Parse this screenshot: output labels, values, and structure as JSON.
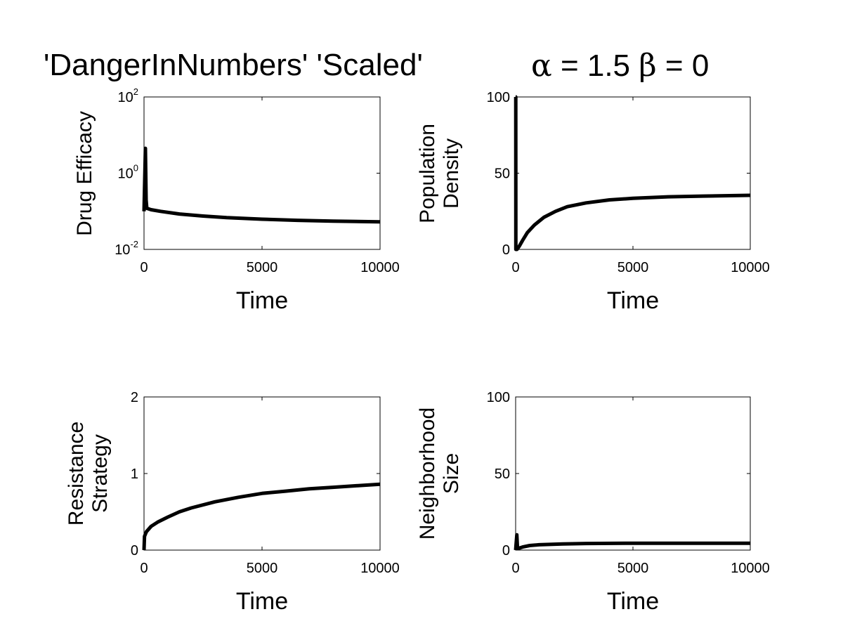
{
  "figure": {
    "title_left": "'DangerInNumbers' 'Scaled'",
    "title_alpha_symbol": "α",
    "title_alpha_rest": " = 1.5 ",
    "title_beta_symbol": "β",
    "title_beta_rest": " = 0"
  },
  "chart_data": [
    {
      "type": "line",
      "ylabel": [
        "Drug Efficacy"
      ],
      "xlabel": "Time",
      "yscale": "log",
      "xlim": [
        0,
        10000
      ],
      "ylim": [
        0.01,
        100
      ],
      "xticks": [
        0,
        5000,
        10000
      ],
      "xticklabels": [
        "0",
        "5000",
        "10000"
      ],
      "yticks": [
        0.01,
        1,
        100
      ],
      "yticklabels": [
        {
          "base": "10",
          "exp": "-2"
        },
        {
          "base": "10",
          "exp": "0"
        },
        {
          "base": "10",
          "exp": "2"
        }
      ],
      "series": [
        {
          "x": [
            0,
            60,
            90,
            120,
            300,
            700,
            1500,
            2500,
            3500,
            5000,
            6500,
            8000,
            10000
          ],
          "y": [
            0.1,
            4.5,
            0.2,
            0.12,
            0.11,
            0.1,
            0.085,
            0.075,
            0.068,
            0.062,
            0.058,
            0.055,
            0.053
          ]
        }
      ]
    },
    {
      "type": "line",
      "ylabel": [
        "Population",
        "Density"
      ],
      "xlabel": "Time",
      "yscale": "linear",
      "xlim": [
        0,
        10000
      ],
      "ylim": [
        0,
        100
      ],
      "xticks": [
        0,
        5000,
        10000
      ],
      "xticklabels": [
        "0",
        "5000",
        "10000"
      ],
      "yticks": [
        0,
        50,
        100
      ],
      "yticklabels": [
        "0",
        "50",
        "100"
      ],
      "series": [
        {
          "x": [
            0,
            5,
            10,
            60,
            150,
            300,
            500,
            800,
            1200,
            1700,
            2200,
            3000,
            4000,
            5000,
            6500,
            8000,
            10000
          ],
          "y": [
            100,
            100,
            0,
            0,
            2,
            6,
            11,
            16,
            21,
            25,
            28,
            30.5,
            32.5,
            33.5,
            34.5,
            35,
            35.5
          ]
        }
      ]
    },
    {
      "type": "line",
      "ylabel": [
        "Resistance",
        "Strategy"
      ],
      "xlabel": "Time",
      "yscale": "linear",
      "xlim": [
        0,
        10000
      ],
      "ylim": [
        0,
        2
      ],
      "xticks": [
        0,
        5000,
        10000
      ],
      "xticklabels": [
        "0",
        "5000",
        "10000"
      ],
      "yticks": [
        0,
        1,
        2
      ],
      "yticklabels": [
        "0",
        "1",
        "2"
      ],
      "series": [
        {
          "x": [
            0,
            20,
            100,
            300,
            600,
            1000,
            1500,
            2000,
            3000,
            4000,
            5000,
            6000,
            7000,
            8000,
            9000,
            10000
          ],
          "y": [
            0,
            0.18,
            0.24,
            0.31,
            0.37,
            0.43,
            0.5,
            0.55,
            0.63,
            0.69,
            0.74,
            0.77,
            0.8,
            0.82,
            0.84,
            0.86
          ]
        }
      ]
    },
    {
      "type": "line",
      "ylabel": [
        "Neighborhood",
        "Size"
      ],
      "xlabel": "Time",
      "yscale": "linear",
      "xlim": [
        0,
        10000
      ],
      "ylim": [
        0,
        100
      ],
      "xticks": [
        0,
        5000,
        10000
      ],
      "xticklabels": [
        "0",
        "5000",
        "10000"
      ],
      "yticks": [
        0,
        50,
        100
      ],
      "yticklabels": [
        "0",
        "50",
        "100"
      ],
      "series": [
        {
          "x": [
            0,
            50,
            80,
            100,
            300,
            600,
            1000,
            2000,
            3000,
            5000,
            7000,
            10000
          ],
          "y": [
            0,
            10,
            1,
            1,
            2,
            3,
            3.5,
            4,
            4.3,
            4.5,
            4.5,
            4.5
          ]
        }
      ]
    }
  ]
}
